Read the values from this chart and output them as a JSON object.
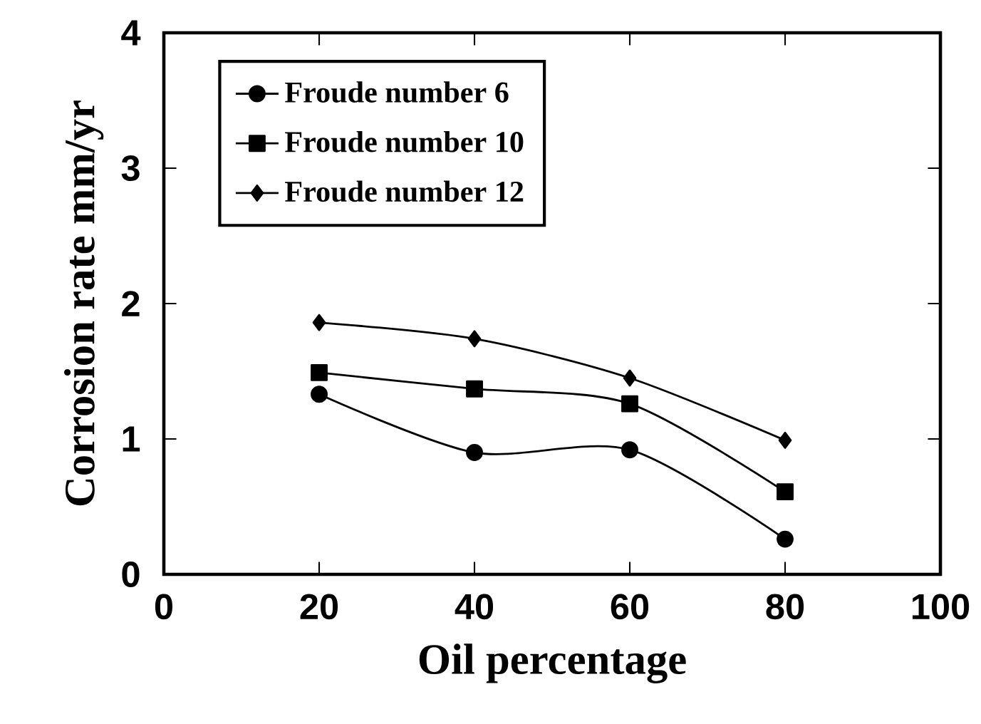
{
  "chart_data": {
    "type": "line",
    "xlabel": "Oil  percentage",
    "ylabel": "Corrosion  rate  mm/yr",
    "x": [
      20,
      40,
      60,
      80
    ],
    "series": [
      {
        "name": "Froude  number  6",
        "color": "#000000",
        "marker": "circle",
        "values": [
          1.33,
          0.9,
          0.92,
          0.26
        ]
      },
      {
        "name": "Froude  number  10",
        "color": "#000000",
        "marker": "square",
        "values": [
          1.49,
          1.37,
          1.26,
          0.61
        ]
      },
      {
        "name": "Froude  number  12",
        "color": "#000000",
        "marker": "diamond",
        "values": [
          1.86,
          1.74,
          1.45,
          0.99
        ]
      }
    ],
    "xlim": [
      0,
      100
    ],
    "xticks": [
      0,
      20,
      40,
      60,
      80,
      100
    ],
    "ylim": [
      0,
      4
    ],
    "yticks": [
      0,
      1,
      2,
      3,
      4
    ],
    "grid": false,
    "legend": "top left",
    "line_style": "solid"
  }
}
